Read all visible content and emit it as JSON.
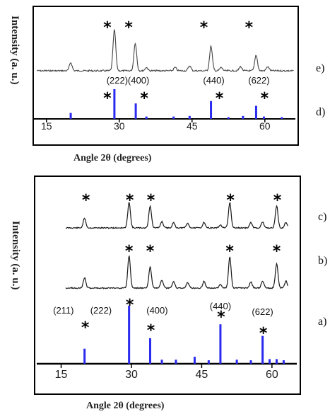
{
  "chart_data": [
    {
      "type": "line",
      "panel": "top",
      "ylabel": "Intensity (a. u.)",
      "xlabel": "Angle 2θ (degrees)",
      "xlim": [
        13,
        66
      ],
      "ticks": [
        15,
        30,
        45,
        60
      ],
      "series": [
        {
          "label": "e)",
          "peaks": [
            [
              20,
              0.2
            ],
            [
              29,
              1.0
            ],
            [
              33.3,
              0.68
            ],
            [
              35.6,
              0.08
            ],
            [
              41.5,
              0.08
            ],
            [
              44.5,
              0.12
            ],
            [
              48.9,
              0.6
            ],
            [
              51,
              0.08
            ],
            [
              55,
              0.1
            ],
            [
              58.2,
              0.38
            ],
            [
              60.6,
              0.1
            ]
          ]
        }
      ],
      "reference": {
        "label": "d)",
        "sticks": [
          [
            20,
            0.2
          ],
          [
            29,
            1.0
          ],
          [
            33.4,
            0.52
          ],
          [
            35.6,
            0.08
          ],
          [
            41.2,
            0.08
          ],
          [
            44.5,
            0.1
          ],
          [
            48.9,
            0.6
          ],
          [
            52.5,
            0.06
          ],
          [
            55.5,
            0.1
          ],
          [
            58.2,
            0.44
          ],
          [
            59.8,
            0.08
          ],
          [
            63.5,
            0.06
          ]
        ]
      },
      "peak_labels": [
        {
          "text": "(222)",
          "x": 29
        },
        {
          "text": "(400)",
          "x": 33.4
        },
        {
          "text": "(440)",
          "x": 48.9
        },
        {
          "text": "(622)",
          "x": 58.2
        }
      ],
      "markers": {
        "spectrum": [
          29,
          33.4,
          48.9,
          58.2
        ],
        "reference": [
          29,
          33.4,
          48.9,
          58.2
        ]
      },
      "marker_symbol": "*"
    },
    {
      "type": "line",
      "panel": "bottom",
      "ylabel": "Intensity (a. u.)",
      "xlabel": "Angle 2θ (degrees)",
      "xlim": [
        11,
        65
      ],
      "ticks": [
        15,
        30,
        45,
        60
      ],
      "series": [
        {
          "label": "c)",
          "peaks": [
            [
              20,
              0.34
            ],
            [
              29.5,
              0.92
            ],
            [
              34,
              0.78
            ],
            [
              36.5,
              0.22
            ],
            [
              39,
              0.18
            ],
            [
              42,
              0.16
            ],
            [
              45.5,
              0.2
            ],
            [
              49,
              0.1
            ],
            [
              51,
              0.9
            ],
            [
              55.5,
              0.18
            ],
            [
              58,
              0.2
            ],
            [
              61,
              0.78
            ],
            [
              63,
              0.2
            ]
          ]
        },
        {
          "label": "b)",
          "peaks": [
            [
              20,
              0.3
            ],
            [
              29.5,
              0.95
            ],
            [
              34,
              0.62
            ],
            [
              36.5,
              0.22
            ],
            [
              39,
              0.18
            ],
            [
              42,
              0.16
            ],
            [
              45.5,
              0.2
            ],
            [
              49,
              0.1
            ],
            [
              51,
              0.92
            ],
            [
              55.5,
              0.18
            ],
            [
              58,
              0.2
            ],
            [
              61,
              0.72
            ],
            [
              63,
              0.2
            ]
          ]
        }
      ],
      "reference": {
        "label": "a)",
        "sticks": [
          [
            20,
            0.26
          ],
          [
            29.5,
            1.0
          ],
          [
            34,
            0.44
          ],
          [
            36.5,
            0.07
          ],
          [
            39.5,
            0.07
          ],
          [
            43.5,
            0.12
          ],
          [
            46.5,
            0.06
          ],
          [
            49,
            0.68
          ],
          [
            52.5,
            0.07
          ],
          [
            55.5,
            0.06
          ],
          [
            58,
            0.48
          ],
          [
            59.5,
            0.08
          ],
          [
            61,
            0.08
          ],
          [
            62.5,
            0.06
          ]
        ]
      },
      "peak_labels": [
        {
          "text": "(211)",
          "x": 15.5
        },
        {
          "text": "(222)",
          "x": 23.5
        },
        {
          "text": "(400)",
          "x": 35.5
        },
        {
          "text": "(440)",
          "x": 49
        },
        {
          "text": "(622)",
          "x": 58
        }
      ],
      "markers": {
        "c": [
          20,
          29.5,
          34,
          51,
          61
        ],
        "b": [
          29.5,
          34,
          51,
          61
        ],
        "reference": [
          20,
          29.5,
          34,
          49,
          58
        ]
      },
      "marker_symbol": "*"
    }
  ],
  "colors": {
    "spectrum": "#1a1a1a",
    "spectrum_top": "#444444",
    "reference": "#2a2af0",
    "axis": "#000000"
  }
}
